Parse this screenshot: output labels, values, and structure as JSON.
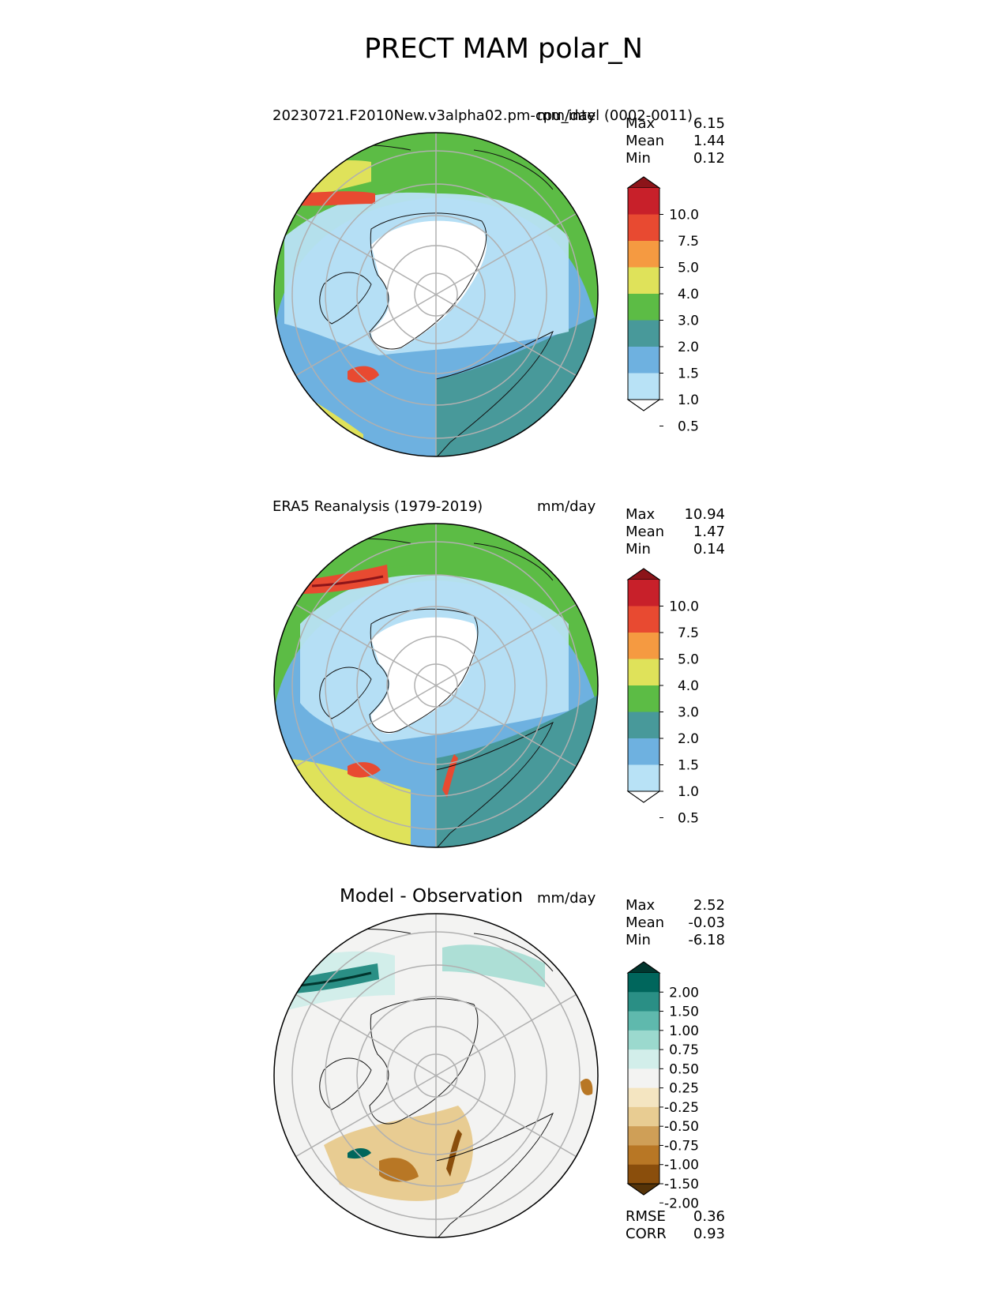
{
  "figure": {
    "title": "PRECT MAM polar_N"
  },
  "panels": [
    {
      "id": "test",
      "title_left": "20230721.F2010New.v3alpha02.pm-cpu_intel (0002-0011)",
      "title_center": "",
      "units": "mm/day",
      "stats": [
        {
          "name": "Max",
          "value": "6.15"
        },
        {
          "name": "Mean",
          "value": "1.44"
        },
        {
          "name": "Min",
          "value": "0.12"
        }
      ],
      "colorbar": {
        "levels": [
          "10.0",
          "7.5",
          "5.0",
          "4.0",
          "3.0",
          "2.0",
          "1.5",
          "1.0",
          "0.5"
        ],
        "colors": [
          "#8c1419",
          "#c8202a",
          "#e84a31",
          "#f59a41",
          "#dfe25a",
          "#5cbc45",
          "#48999a",
          "#6eb1e0",
          "#b8e2f6",
          "#ffffff"
        ]
      }
    },
    {
      "id": "reference",
      "title_left": "ERA5 Reanalysis (1979-2019)",
      "title_center": "",
      "units": "mm/day",
      "stats": [
        {
          "name": "Max",
          "value": "10.94"
        },
        {
          "name": "Mean",
          "value": "1.47"
        },
        {
          "name": "Min",
          "value": "0.14"
        }
      ],
      "colorbar": {
        "levels": [
          "10.0",
          "7.5",
          "5.0",
          "4.0",
          "3.0",
          "2.0",
          "1.5",
          "1.0",
          "0.5"
        ],
        "colors": [
          "#8c1419",
          "#c8202a",
          "#e84a31",
          "#f59a41",
          "#dfe25a",
          "#5cbc45",
          "#48999a",
          "#6eb1e0",
          "#b8e2f6",
          "#ffffff"
        ]
      }
    },
    {
      "id": "diff",
      "title_left": "",
      "title_center": "Model - Observation",
      "units": "mm/day",
      "stats": [
        {
          "name": "Max",
          "value": "2.52"
        },
        {
          "name": "Mean",
          "value": "-0.03"
        },
        {
          "name": "Min",
          "value": "-6.18"
        }
      ],
      "colorbar": {
        "levels": [
          "2.00",
          "1.50",
          "1.00",
          "0.75",
          "0.50",
          "0.25",
          "-0.25",
          "-0.50",
          "-0.75",
          "-1.00",
          "-1.50",
          "-2.00"
        ],
        "colors": [
          "#01362e",
          "#00665c",
          "#2a8f85",
          "#5fb9ad",
          "#9bd9ce",
          "#d2eeea",
          "#f3f3f2",
          "#f4e5c1",
          "#e8cc92",
          "#cf9f57",
          "#b87725",
          "#8a4e0c",
          "#553308"
        ]
      },
      "extra_stats": [
        {
          "name": "RMSE",
          "value": "0.36"
        },
        {
          "name": "CORR",
          "value": "0.93"
        }
      ]
    }
  ]
}
